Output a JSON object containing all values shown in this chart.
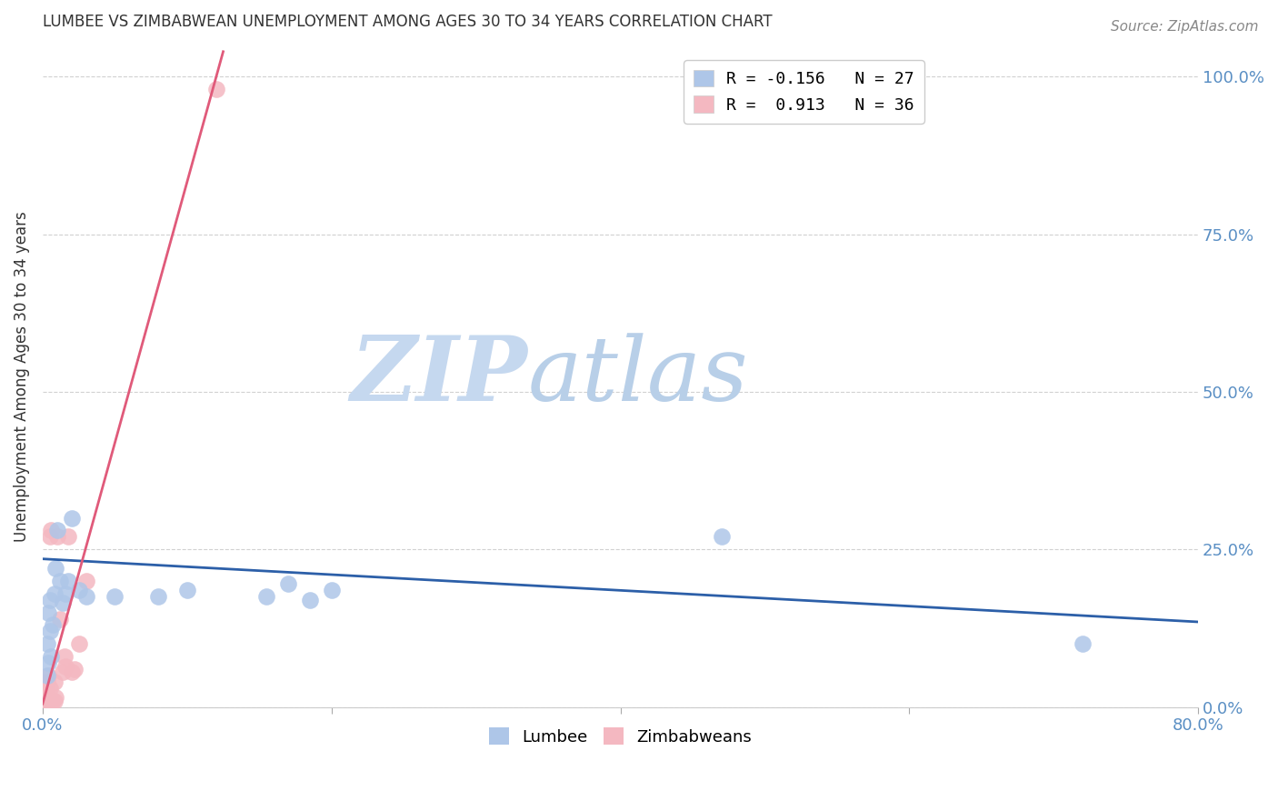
{
  "title": "LUMBEE VS ZIMBABWEAN UNEMPLOYMENT AMONG AGES 30 TO 34 YEARS CORRELATION CHART",
  "source": "Source: ZipAtlas.com",
  "ylabel": "Unemployment Among Ages 30 to 34 years",
  "xlim": [
    0.0,
    0.8
  ],
  "ylim": [
    0.0,
    1.05
  ],
  "xticks": [
    0.0,
    0.2,
    0.4,
    0.6,
    0.8
  ],
  "xtick_labels": [
    "0.0%",
    "",
    "",
    "",
    "80.0%"
  ],
  "ytick_labels": [
    "0.0%",
    "25.0%",
    "50.0%",
    "75.0%",
    "100.0%"
  ],
  "yticks": [
    0.0,
    0.25,
    0.5,
    0.75,
    1.0
  ],
  "lumbee_color": "#aec6e8",
  "zimbabwean_color": "#f4b8c1",
  "lumbee_line_color": "#2c5fa8",
  "zimbabwean_line_color": "#e05a7a",
  "legend_R_lumbee": "R = -0.156",
  "legend_N_lumbee": "N = 27",
  "legend_R_zimbabwean": "R =  0.913",
  "legend_N_zimbabwean": "N = 36",
  "lumbee_x": [
    0.003,
    0.003,
    0.004,
    0.004,
    0.005,
    0.005,
    0.006,
    0.007,
    0.008,
    0.009,
    0.01,
    0.012,
    0.014,
    0.016,
    0.018,
    0.02,
    0.025,
    0.03,
    0.05,
    0.08,
    0.1,
    0.155,
    0.17,
    0.185,
    0.2,
    0.47,
    0.72
  ],
  "lumbee_y": [
    0.05,
    0.1,
    0.15,
    0.07,
    0.12,
    0.17,
    0.08,
    0.13,
    0.18,
    0.22,
    0.28,
    0.2,
    0.165,
    0.18,
    0.2,
    0.3,
    0.185,
    0.175,
    0.175,
    0.175,
    0.185,
    0.175,
    0.195,
    0.17,
    0.185,
    0.27,
    0.1
  ],
  "zimbabwean_x": [
    0.0,
    0.0,
    0.0,
    0.0,
    0.0,
    0.0,
    0.0,
    0.0,
    0.0,
    0.0,
    0.001,
    0.001,
    0.001,
    0.002,
    0.002,
    0.003,
    0.003,
    0.004,
    0.005,
    0.005,
    0.006,
    0.007,
    0.008,
    0.008,
    0.009,
    0.01,
    0.012,
    0.014,
    0.015,
    0.016,
    0.018,
    0.02,
    0.022,
    0.025,
    0.03,
    0.12
  ],
  "zimbabwean_y": [
    0.0,
    0.005,
    0.01,
    0.015,
    0.02,
    0.025,
    0.03,
    0.035,
    0.04,
    0.005,
    0.0,
    0.01,
    0.025,
    0.0,
    0.03,
    0.04,
    0.02,
    0.05,
    0.27,
    0.03,
    0.28,
    0.01,
    0.01,
    0.04,
    0.015,
    0.27,
    0.14,
    0.055,
    0.08,
    0.065,
    0.27,
    0.055,
    0.06,
    0.1,
    0.2,
    0.98
  ],
  "lumbee_line_x0": 0.0,
  "lumbee_line_y0": 0.235,
  "lumbee_line_x1": 0.8,
  "lumbee_line_y1": 0.135,
  "zim_line_x0": 0.0,
  "zim_line_y0": 0.005,
  "zim_line_x1": 0.125,
  "zim_line_y1": 1.04,
  "watermark_part1": "ZIP",
  "watermark_part2": "atlas",
  "watermark_color1": "#c5d8ef",
  "watermark_color2": "#b8cfe8",
  "background_color": "#ffffff",
  "grid_color": "#cccccc",
  "tick_color": "#5a8fc4",
  "title_color": "#333333",
  "ylabel_color": "#333333",
  "source_color": "#888888"
}
